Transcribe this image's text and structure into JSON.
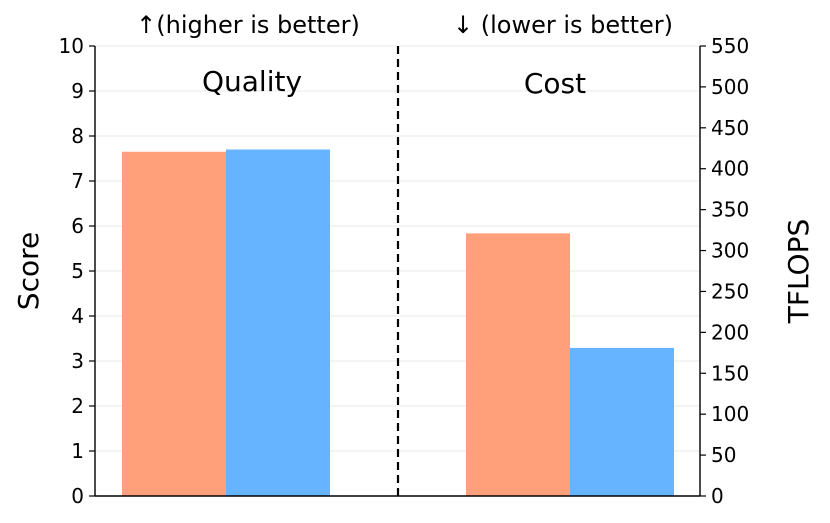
{
  "chart_data": {
    "type": "bar",
    "left_header": "↑(higher is better)",
    "right_header": "↓ (lower is better)",
    "ylabel_left": "Score",
    "ylabel_right": "TFLOPS",
    "ylim_left": [
      0,
      10
    ],
    "ylim_right": [
      0,
      550
    ],
    "yticks_left": [
      "0",
      "1",
      "2",
      "3",
      "4",
      "5",
      "6",
      "7",
      "8",
      "9",
      "10"
    ],
    "yticks_right": [
      "0",
      "50",
      "100",
      "150",
      "200",
      "250",
      "300",
      "350",
      "400",
      "450",
      "500",
      "550"
    ],
    "grid": true,
    "divider": "dashed",
    "panels": [
      {
        "label": "Quality",
        "axis": "left",
        "values": [
          7.65,
          7.7
        ]
      },
      {
        "label": "Cost",
        "axis": "right",
        "values": [
          321,
          181
        ]
      }
    ],
    "colors": [
      "#ffa07a",
      "#66b3ff"
    ]
  }
}
